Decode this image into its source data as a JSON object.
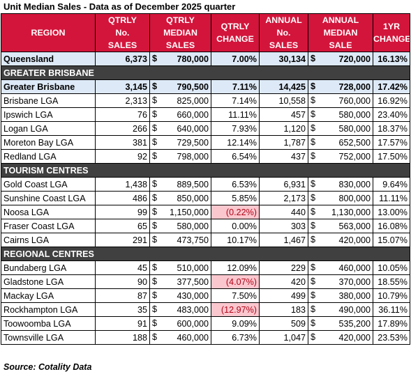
{
  "title": "Unit Median Sales - Data as of December 2025 quarter",
  "headers": {
    "region": "REGION",
    "qtrly_sales": "QTRLY No. SALES",
    "qtrly_median": "QTRLY MEDIAN SALES",
    "qtrly_change": "QTRLY CHANGE",
    "annual_sales": "ANNUAL No. SALES",
    "annual_median": "ANNUAL MEDIAN SALE",
    "yr_change": "1YR CHANGE"
  },
  "currency": "$",
  "queensland": {
    "region": "Queensland",
    "qtrly_sales": "6,373",
    "qtrly_median": "780,000",
    "qtrly_change": "7.00%",
    "annual_sales": "30,134",
    "annual_median": "720,000",
    "yr_change": "16.13%"
  },
  "sections": [
    {
      "label": "GREATER BRISBANE",
      "summary": {
        "region": "Greater Brisbane",
        "qtrly_sales": "3,145",
        "qtrly_median": "790,500",
        "qtrly_change": "7.11%",
        "annual_sales": "14,425",
        "annual_median": "728,000",
        "yr_change": "17.42%"
      },
      "rows": [
        {
          "region": "Brisbane LGA",
          "qtrly_sales": "2,313",
          "qtrly_median": "825,000",
          "qtrly_change": "7.14%",
          "annual_sales": "10,558",
          "annual_median": "760,000",
          "yr_change": "16.92%"
        },
        {
          "region": "Ipswich LGA",
          "qtrly_sales": "76",
          "qtrly_median": "660,000",
          "qtrly_change": "11.11%",
          "annual_sales": "457",
          "annual_median": "580,000",
          "yr_change": "23.40%"
        },
        {
          "region": "Logan LGA",
          "qtrly_sales": "266",
          "qtrly_median": "640,000",
          "qtrly_change": "7.93%",
          "annual_sales": "1,120",
          "annual_median": "580,000",
          "yr_change": "18.37%"
        },
        {
          "region": "Moreton Bay LGA",
          "qtrly_sales": "381",
          "qtrly_median": "729,500",
          "qtrly_change": "12.14%",
          "annual_sales": "1,787",
          "annual_median": "652,500",
          "yr_change": "17.57%"
        },
        {
          "region": "Redland LGA",
          "qtrly_sales": "92",
          "qtrly_median": "798,000",
          "qtrly_change": "6.54%",
          "annual_sales": "437",
          "annual_median": "752,000",
          "yr_change": "17.50%"
        }
      ]
    },
    {
      "label": "TOURISM CENTRES",
      "rows": [
        {
          "region": "Gold Coast LGA",
          "qtrly_sales": "1,438",
          "qtrly_median": "889,500",
          "qtrly_change": "6.53%",
          "annual_sales": "6,931",
          "annual_median": "830,000",
          "yr_change": "9.64%"
        },
        {
          "region": "Sunshine Coast LGA",
          "qtrly_sales": "486",
          "qtrly_median": "850,000",
          "qtrly_change": "5.85%",
          "annual_sales": "2,173",
          "annual_median": "800,000",
          "yr_change": "11.11%"
        },
        {
          "region": "Noosa LGA",
          "qtrly_sales": "99",
          "qtrly_median": "1,150,000",
          "qtrly_change": "(0.22%)",
          "negative": true,
          "annual_sales": "440",
          "annual_median": "1,130,000",
          "yr_change": "13.00%"
        },
        {
          "region": "Fraser Coast LGA",
          "qtrly_sales": "65",
          "qtrly_median": "580,000",
          "qtrly_change": "0.00%",
          "annual_sales": "303",
          "annual_median": "563,000",
          "yr_change": "16.08%"
        },
        {
          "region": "Cairns LGA",
          "qtrly_sales": "291",
          "qtrly_median": "473,750",
          "qtrly_change": "10.17%",
          "annual_sales": "1,467",
          "annual_median": "420,000",
          "yr_change": "15.07%"
        }
      ]
    },
    {
      "label": "REGIONAL CENTRES",
      "rows": [
        {
          "region": "Bundaberg LGA",
          "qtrly_sales": "45",
          "qtrly_median": "510,000",
          "qtrly_change": "12.09%",
          "annual_sales": "229",
          "annual_median": "460,000",
          "yr_change": "10.05%"
        },
        {
          "region": "Gladstone LGA",
          "qtrly_sales": "90",
          "qtrly_median": "377,500",
          "qtrly_change": "(4.07%)",
          "negative": true,
          "annual_sales": "420",
          "annual_median": "370,000",
          "yr_change": "18.55%"
        },
        {
          "region": "Mackay LGA",
          "qtrly_sales": "87",
          "qtrly_median": "430,000",
          "qtrly_change": "7.50%",
          "annual_sales": "499",
          "annual_median": "380,000",
          "yr_change": "10.79%"
        },
        {
          "region": "Rockhampton LGA",
          "qtrly_sales": "35",
          "qtrly_median": "483,000",
          "qtrly_change": "(12.97%)",
          "negative": true,
          "annual_sales": "183",
          "annual_median": "490,000",
          "yr_change": "36.11%"
        },
        {
          "region": "Toowoomba LGA",
          "qtrly_sales": "91",
          "qtrly_median": "600,000",
          "qtrly_change": "9.09%",
          "annual_sales": "509",
          "annual_median": "535,200",
          "yr_change": "17.89%"
        },
        {
          "region": "Townsville LGA",
          "qtrly_sales": "188",
          "qtrly_median": "460,000",
          "qtrly_change": "6.73%",
          "annual_sales": "1,047",
          "annual_median": "420,000",
          "yr_change": "23.53%"
        }
      ]
    }
  ],
  "source": "Source: Cotality Data",
  "colors": {
    "header_bg": "#d3153b",
    "section_bg": "#404040",
    "highlight_bg": "#dde9f6",
    "negative_bg": "#fbc7ce",
    "negative_text": "#b0061a"
  }
}
